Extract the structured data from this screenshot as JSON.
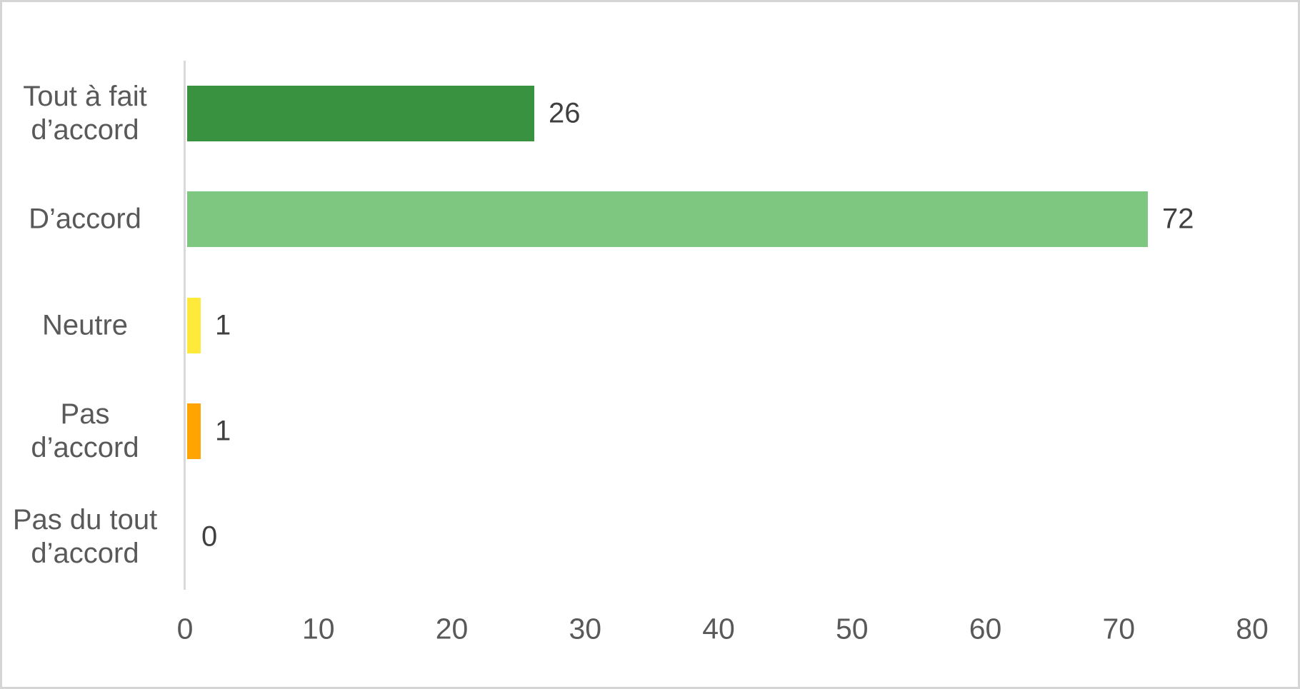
{
  "chart_data": {
    "type": "bar",
    "orientation": "horizontal",
    "title": "",
    "xlabel": "",
    "ylabel": "",
    "categories": [
      "Tout à fait d’accord",
      "D’accord",
      "Neutre",
      "Pas d’accord",
      "Pas du tout d’accord"
    ],
    "category_label_lines": [
      [
        "Tout à fait",
        "d’accord"
      ],
      [
        "D’accord"
      ],
      [
        "Neutre"
      ],
      [
        "Pas",
        "d’accord"
      ],
      [
        "Pas du tout",
        "d’accord"
      ]
    ],
    "values": [
      26,
      72,
      1,
      1,
      0
    ],
    "data_labels": [
      "26",
      "72",
      "1",
      "1",
      "0"
    ],
    "bar_colors": [
      "#38923F",
      "#7EC781",
      "#FFE93B",
      "#FFA400",
      null
    ],
    "xlim": [
      0,
      80
    ],
    "xticks": [
      "0",
      "10",
      "20",
      "30",
      "40",
      "50",
      "60",
      "70",
      "80"
    ],
    "grid": false,
    "legend": false,
    "data_labels_shown": true
  },
  "colors": {
    "background": "#FFFFFF",
    "frame_border": "#D5D5D5",
    "axis_line": "#D9D9D9",
    "category_label_text": "#595959",
    "tick_label_text": "#595959",
    "data_label_text": "#404040"
  }
}
